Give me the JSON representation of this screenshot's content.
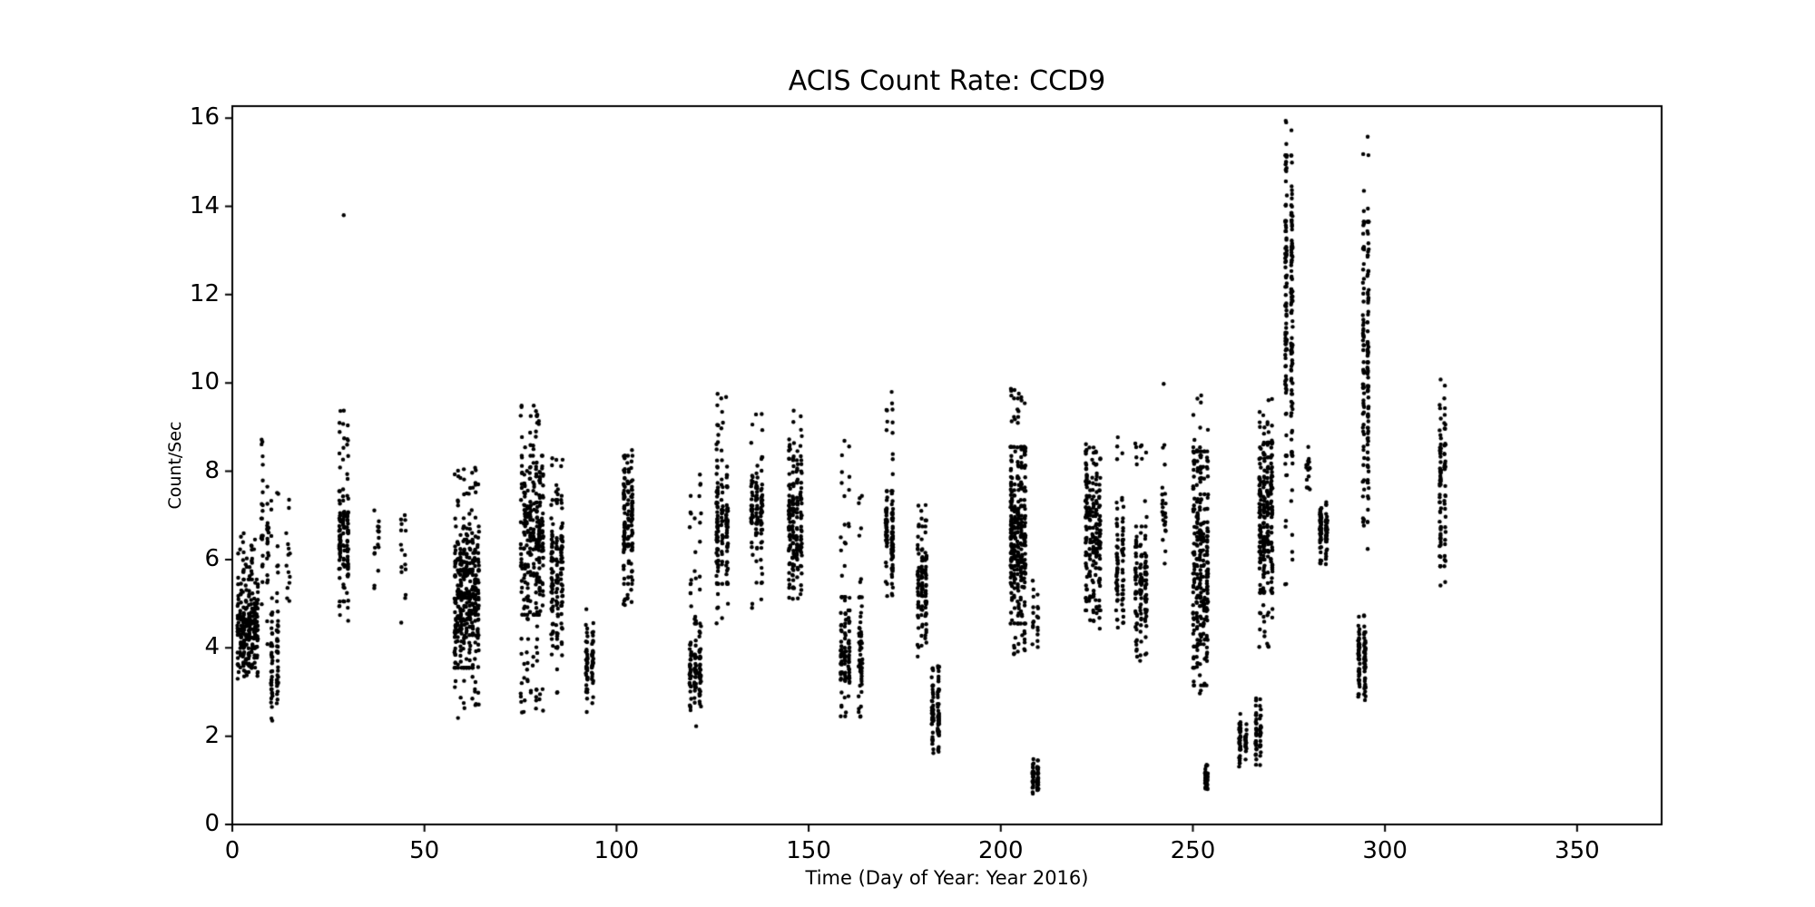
{
  "figure": {
    "background": "#ffffff",
    "axis_color": "#000000"
  },
  "chart_data": {
    "type": "scatter",
    "title": "ACIS Count Rate: CCD9",
    "xlabel": "Time (Day of Year: Year 2016)",
    "ylabel": "Count/Sec",
    "xlim": [
      0,
      372
    ],
    "ylim": [
      0,
      16.27
    ],
    "xticks": [
      0,
      50,
      100,
      150,
      200,
      250,
      300,
      350
    ],
    "yticks": [
      0,
      2,
      4,
      6,
      8,
      10,
      12,
      14,
      16
    ],
    "grid": false,
    "legend": null,
    "marker": {
      "color": "#000000",
      "radius": 2.2
    },
    "clusters": [
      {
        "day": 4,
        "spread": 5,
        "cols": 8,
        "ymin": 3.2,
        "ymax": 6.6,
        "core": [
          3.6,
          5.4
        ],
        "n": 260
      },
      {
        "day": 8.5,
        "spread": 1.5,
        "cols": 2,
        "ymin": 4.0,
        "ymax": 9.1,
        "core": [
          5.5,
          7.5
        ],
        "n": 45
      },
      {
        "day": 11,
        "spread": 1.5,
        "cols": 2,
        "ymin": 2.3,
        "ymax": 7.9,
        "core": [
          2.5,
          4.6
        ],
        "n": 80
      },
      {
        "day": 14.5,
        "spread": 1,
        "cols": 1,
        "ymin": 4.5,
        "ymax": 7.9,
        "core": [
          4.8,
          6.5
        ],
        "n": 14
      },
      {
        "day": 29,
        "spread": 2,
        "cols": 3,
        "ymin": 4.5,
        "ymax": 9.6,
        "core": [
          5.2,
          7.4
        ],
        "n": 130
      },
      {
        "day": 37.5,
        "spread": 1,
        "cols": 2,
        "ymin": 5.1,
        "ymax": 7.9,
        "core": [
          5.5,
          7.0
        ],
        "n": 16
      },
      {
        "day": 44.5,
        "spread": 1,
        "cols": 2,
        "ymin": 4.5,
        "ymax": 7.4,
        "core": [
          5.0,
          7.0
        ],
        "n": 16
      },
      {
        "day": 61,
        "spread": 6,
        "cols": 9,
        "ymin": 2.3,
        "ymax": 8.1,
        "core": [
          3.7,
          6.6
        ],
        "n": 380
      },
      {
        "day": 78,
        "spread": 5.5,
        "cols": 8,
        "ymin": 2.5,
        "ymax": 9.5,
        "core": [
          4.9,
          8.2
        ],
        "n": 300
      },
      {
        "day": 84.5,
        "spread": 2.5,
        "cols": 3,
        "ymin": 2.6,
        "ymax": 8.6,
        "core": [
          4.0,
          7.2
        ],
        "n": 150
      },
      {
        "day": 93,
        "spread": 1.5,
        "cols": 2,
        "ymin": 2.5,
        "ymax": 4.9,
        "core": [
          3.0,
          4.3
        ],
        "n": 70
      },
      {
        "day": 103,
        "spread": 2,
        "cols": 3,
        "ymin": 4.9,
        "ymax": 8.6,
        "core": [
          5.6,
          8.2
        ],
        "n": 140
      },
      {
        "day": 120.5,
        "spread": 2.5,
        "cols": 3,
        "ymin": 2.2,
        "ymax": 8.0,
        "core": [
          2.8,
          4.4
        ],
        "n": 130
      },
      {
        "day": 127.5,
        "spread": 2.5,
        "cols": 3,
        "ymin": 4.5,
        "ymax": 10.1,
        "core": [
          5.6,
          8.1
        ],
        "n": 150
      },
      {
        "day": 136.5,
        "spread": 2.5,
        "cols": 3,
        "ymin": 4.9,
        "ymax": 9.3,
        "core": [
          6.2,
          7.8
        ],
        "n": 110
      },
      {
        "day": 146.5,
        "spread": 3,
        "cols": 4,
        "ymin": 5.0,
        "ymax": 9.4,
        "core": [
          5.5,
          8.1
        ],
        "n": 190
      },
      {
        "day": 159.5,
        "spread": 2,
        "cols": 3,
        "ymin": 2.4,
        "ymax": 8.7,
        "core": [
          2.6,
          5.0
        ],
        "n": 110
      },
      {
        "day": 163.5,
        "spread": 1,
        "cols": 1,
        "ymin": 2.4,
        "ymax": 7.5,
        "core": [
          2.8,
          5.0
        ],
        "n": 60
      },
      {
        "day": 171,
        "spread": 1.5,
        "cols": 2,
        "ymin": 5.0,
        "ymax": 10.2,
        "core": [
          5.6,
          7.4
        ],
        "n": 110
      },
      {
        "day": 179.5,
        "spread": 2,
        "cols": 3,
        "ymin": 3.7,
        "ymax": 7.6,
        "core": [
          4.2,
          6.6
        ],
        "n": 110
      },
      {
        "day": 183,
        "spread": 1.5,
        "cols": 2,
        "ymin": 1.5,
        "ymax": 3.6,
        "core": [
          1.8,
          3.0
        ],
        "n": 90
      },
      {
        "day": 204.5,
        "spread": 3.5,
        "cols": 5,
        "ymin": 3.8,
        "ymax": 10.0,
        "core": [
          4.7,
          8.4
        ],
        "n": 320
      },
      {
        "day": 209,
        "spread": 1.2,
        "cols": 2,
        "ymin": 0.7,
        "ymax": 1.6,
        "core": [
          0.8,
          1.3
        ],
        "n": 60
      },
      {
        "day": 209,
        "spread": 1.2,
        "cols": 2,
        "ymin": 3.8,
        "ymax": 5.6,
        "core": [
          4.0,
          5.2
        ],
        "n": 20
      },
      {
        "day": 224,
        "spread": 3.5,
        "cols": 5,
        "ymin": 4.4,
        "ymax": 8.9,
        "core": [
          5.0,
          8.3
        ],
        "n": 210
      },
      {
        "day": 231,
        "spread": 1.5,
        "cols": 2,
        "ymin": 4.4,
        "ymax": 8.9,
        "core": [
          5.0,
          7.2
        ],
        "n": 80
      },
      {
        "day": 236.5,
        "spread": 2.5,
        "cols": 3,
        "ymin": 3.7,
        "ymax": 8.8,
        "core": [
          4.0,
          6.6
        ],
        "n": 130
      },
      {
        "day": 242.5,
        "spread": 1,
        "cols": 1,
        "ymin": 5.5,
        "ymax": 10.2,
        "core": [
          6.0,
          8.0
        ],
        "n": 25
      },
      {
        "day": 252,
        "spread": 3.5,
        "cols": 5,
        "ymin": 2.9,
        "ymax": 10.0,
        "core": [
          3.3,
          8.3
        ],
        "n": 280
      },
      {
        "day": 253.5,
        "spread": 0.8,
        "cols": 1,
        "ymin": 0.8,
        "ymax": 1.4,
        "core": [
          0.9,
          1.3
        ],
        "n": 40
      },
      {
        "day": 263,
        "spread": 1.5,
        "cols": 2,
        "ymin": 1.3,
        "ymax": 2.6,
        "core": [
          1.5,
          2.3
        ],
        "n": 60
      },
      {
        "day": 267,
        "spread": 1.2,
        "cols": 2,
        "ymin": 1.2,
        "ymax": 2.9,
        "core": [
          1.4,
          2.6
        ],
        "n": 55
      },
      {
        "day": 269,
        "spread": 3,
        "cols": 4,
        "ymin": 4.0,
        "ymax": 9.7,
        "core": [
          5.4,
          8.5
        ],
        "n": 260
      },
      {
        "day": 275,
        "spread": 1.5,
        "cols": 2,
        "ymin": 5.3,
        "ymax": 16.05,
        "core": [
          8.5,
          15.0
        ],
        "n": 200
      },
      {
        "day": 280,
        "spread": 1,
        "cols": 1,
        "ymin": 7.5,
        "ymax": 8.6,
        "core": [
          7.7,
          8.4
        ],
        "n": 15
      },
      {
        "day": 284,
        "spread": 1.5,
        "cols": 2,
        "ymin": 5.8,
        "ymax": 7.3,
        "core": [
          6.4,
          7.2
        ],
        "n": 90
      },
      {
        "day": 294,
        "spread": 1.5,
        "cols": 2,
        "ymin": 2.8,
        "ymax": 4.8,
        "core": [
          3.1,
          4.6
        ],
        "n": 90
      },
      {
        "day": 295,
        "spread": 1.2,
        "cols": 2,
        "ymin": 5.8,
        "ymax": 15.7,
        "core": [
          7.0,
          13.5
        ],
        "n": 160
      },
      {
        "day": 315,
        "spread": 1.2,
        "cols": 2,
        "ymin": 5.4,
        "ymax": 10.1,
        "core": [
          6.0,
          9.5
        ],
        "n": 90
      }
    ],
    "outliers": [
      [
        29,
        13.8
      ]
    ]
  }
}
